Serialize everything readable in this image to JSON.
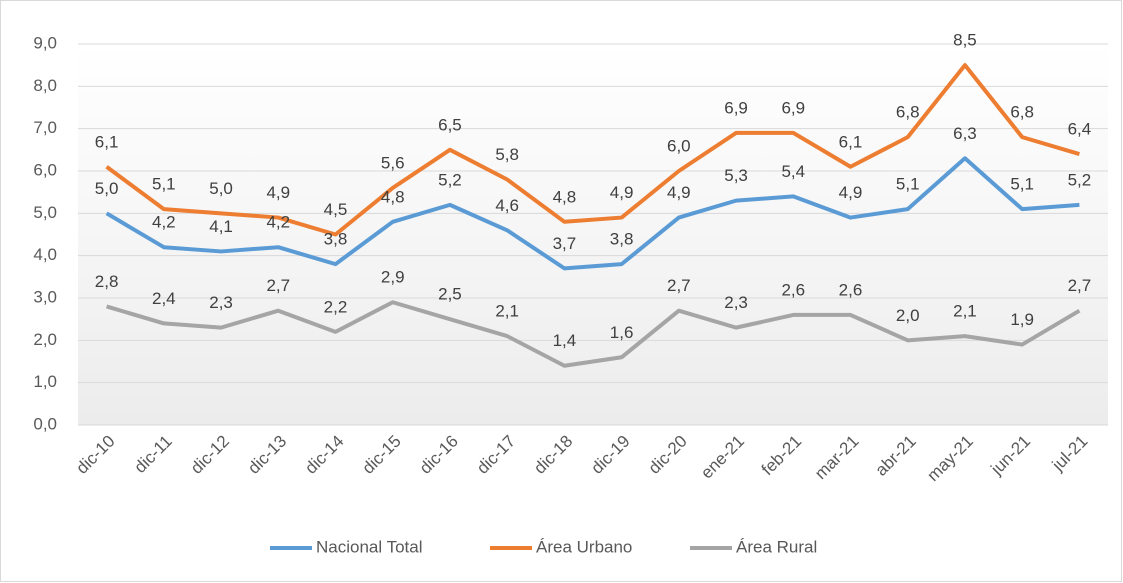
{
  "chart_data": {
    "type": "line",
    "categories": [
      "dic-10",
      "dic-11",
      "dic-12",
      "dic-13",
      "dic-14",
      "dic-15",
      "dic-16",
      "dic-17",
      "dic-18",
      "dic-19",
      "dic-20",
      "ene-21",
      "feb-21",
      "mar-21",
      "abr-21",
      "may-21",
      "jun-21",
      "jul-21"
    ],
    "series": [
      {
        "name": "Nacional Total",
        "color": "#5b9bd5",
        "values": [
          5.0,
          4.2,
          4.1,
          4.2,
          3.8,
          4.8,
          5.2,
          4.6,
          3.7,
          3.8,
          4.9,
          5.3,
          5.4,
          4.9,
          5.1,
          6.3,
          5.1,
          5.2
        ],
        "value_labels": [
          "5,0",
          "4,2",
          "4,1",
          "4,2",
          "3,8",
          "4,8",
          "5,2",
          "4,6",
          "3,7",
          "3,8",
          "4,9",
          "5,3",
          "5,4",
          "4,9",
          "5,1",
          "6,3",
          "5,1",
          "5,2"
        ]
      },
      {
        "name": "Área Urbano",
        "color": "#ed7d31",
        "values": [
          6.1,
          5.1,
          5.0,
          4.9,
          4.5,
          5.6,
          6.5,
          5.8,
          4.8,
          4.9,
          6.0,
          6.9,
          6.9,
          6.1,
          6.8,
          8.5,
          6.8,
          6.4
        ],
        "value_labels": [
          "6,1",
          "5,1",
          "5,0",
          "4,9",
          "4,5",
          "5,6",
          "6,5",
          "5,8",
          "4,8",
          "4,9",
          "6,0",
          "6,9",
          "6,9",
          "6,1",
          "6,8",
          "8,5",
          "6,8",
          "6,4"
        ]
      },
      {
        "name": "Área Rural",
        "color": "#a5a5a5",
        "values": [
          2.8,
          2.4,
          2.3,
          2.7,
          2.2,
          2.9,
          2.5,
          2.1,
          1.4,
          1.6,
          2.7,
          2.3,
          2.6,
          2.6,
          2.0,
          2.1,
          1.9,
          2.7
        ],
        "value_labels": [
          "2,8",
          "2,4",
          "2,3",
          "2,7",
          "2,2",
          "2,9",
          "2,5",
          "2,1",
          "1,4",
          "1,6",
          "2,7",
          "2,3",
          "2,6",
          "2,6",
          "2,0",
          "2,1",
          "1,9",
          "2,7"
        ]
      }
    ],
    "ylim": [
      0,
      9
    ],
    "yticks": [
      {
        "value": 0,
        "label": "0,0"
      },
      {
        "value": 1,
        "label": "1,0"
      },
      {
        "value": 2,
        "label": "2,0"
      },
      {
        "value": 3,
        "label": "3,0"
      },
      {
        "value": 4,
        "label": "4,0"
      },
      {
        "value": 5,
        "label": "5,0"
      },
      {
        "value": 6,
        "label": "6,0"
      },
      {
        "value": 7,
        "label": "7,0"
      },
      {
        "value": 8,
        "label": "8,0"
      },
      {
        "value": 9,
        "label": "9,0"
      }
    ],
    "grid": true,
    "legend": "bottom"
  }
}
